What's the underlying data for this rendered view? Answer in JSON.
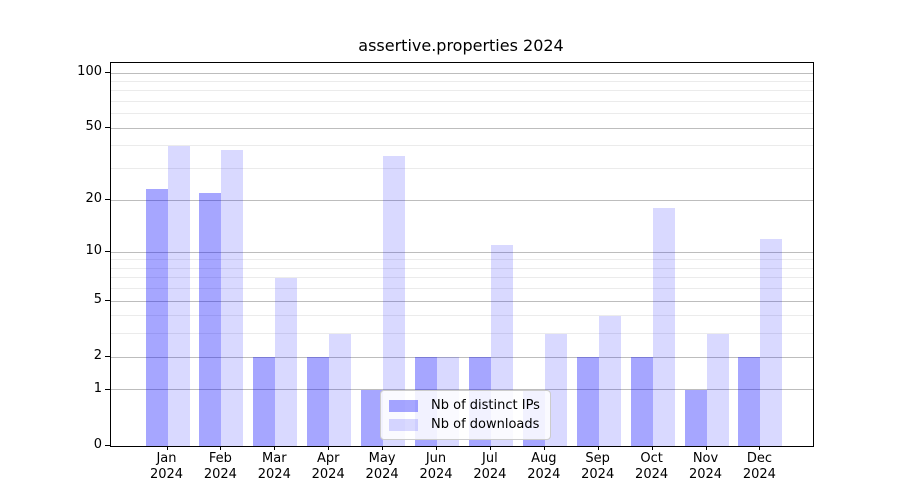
{
  "chart_data": {
    "type": "bar",
    "title": "assertive.properties 2024",
    "categories": [
      "Jan",
      "Feb",
      "Mar",
      "Apr",
      "May",
      "Jun",
      "Jul",
      "Aug",
      "Sep",
      "Oct",
      "Nov",
      "Dec"
    ],
    "year_label": "2024",
    "series": [
      {
        "name": "Nb of distinct IPs",
        "color": "#0000FF59",
        "values": [
          23,
          22,
          2,
          2,
          1,
          2,
          2,
          1,
          2,
          2,
          1,
          2
        ]
      },
      {
        "name": "Nb of downloads",
        "color": "#0000FF26",
        "values": [
          40,
          38,
          7,
          3,
          35,
          2,
          11,
          3,
          4,
          18,
          3,
          12
        ]
      }
    ],
    "y_scale": "log1p",
    "y_ticks": [
      0,
      1,
      2,
      5,
      10,
      20,
      50,
      100
    ],
    "y_minor_gridlines": [
      3,
      4,
      6,
      7,
      8,
      9,
      30,
      40,
      60,
      70,
      80,
      90
    ],
    "ylim": [
      0,
      113
    ],
    "xlabel": "",
    "ylabel": "",
    "grid": true,
    "legend_position": "lower center"
  }
}
